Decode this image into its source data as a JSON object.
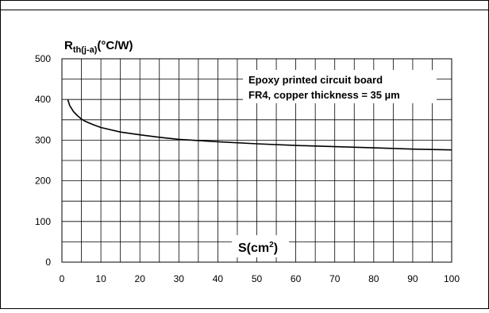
{
  "chart_data": {
    "type": "line",
    "ylabel_main": "R",
    "ylabel_sub": "th(j-a)",
    "ylabel_unit": "(°C/W)",
    "xlabel_main": "S(cm",
    "xlabel_sup": "2",
    "xlabel_close": ")",
    "annotation": [
      "Epoxy printed circuit board",
      "FR4, copper thickness = 35 µm"
    ],
    "xlim": [
      0,
      100
    ],
    "ylim": [
      0,
      500
    ],
    "x_ticks": [
      "0",
      "10",
      "20",
      "30",
      "40",
      "50",
      "60",
      "70",
      "80",
      "90",
      "100"
    ],
    "y_ticks": [
      "0",
      "100",
      "200",
      "300",
      "400",
      "500"
    ],
    "grid": true,
    "series": [
      {
        "x": [
          1.5,
          2,
          3,
          4,
          5,
          6,
          8,
          10,
          15,
          20,
          25,
          30,
          35,
          40,
          50,
          60,
          70,
          80,
          90,
          100
        ],
        "y": [
          400,
          385,
          370,
          360,
          352,
          346,
          338,
          331,
          320,
          313,
          307,
          302,
          299,
          296,
          291,
          287,
          284,
          281,
          278,
          276
        ]
      }
    ]
  }
}
